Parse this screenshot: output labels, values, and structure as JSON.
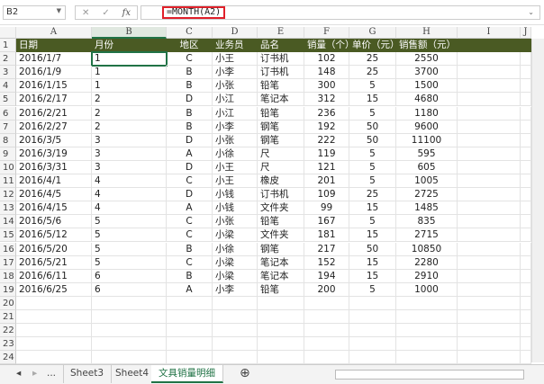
{
  "formula_bar": {
    "name_box": "B2",
    "cancel": "✕",
    "enter": "✓",
    "fx": "fx",
    "formula": "=MONTH(A2)"
  },
  "columns": [
    "A",
    "B",
    "C",
    "D",
    "E",
    "F",
    "G",
    "H",
    "I",
    "J"
  ],
  "header": [
    "日期",
    "月份",
    "地区",
    "业务员",
    "品名",
    "销量（个）",
    "单价（元）",
    "销售额（元）"
  ],
  "rows": [
    [
      "2016/1/7",
      "1",
      "C",
      "小王",
      "订书机",
      "102",
      "25",
      "2550"
    ],
    [
      "2016/1/9",
      "1",
      "B",
      "小李",
      "订书机",
      "148",
      "25",
      "3700"
    ],
    [
      "2016/1/15",
      "1",
      "B",
      "小张",
      "铅笔",
      "300",
      "5",
      "1500"
    ],
    [
      "2016/2/17",
      "2",
      "D",
      "小江",
      "笔记本",
      "312",
      "15",
      "4680"
    ],
    [
      "2016/2/21",
      "2",
      "B",
      "小江",
      "铅笔",
      "236",
      "5",
      "1180"
    ],
    [
      "2016/2/27",
      "2",
      "B",
      "小李",
      "钢笔",
      "192",
      "50",
      "9600"
    ],
    [
      "2016/3/5",
      "3",
      "D",
      "小张",
      "钢笔",
      "222",
      "50",
      "11100"
    ],
    [
      "2016/3/19",
      "3",
      "A",
      "小徐",
      "尺",
      "119",
      "5",
      "595"
    ],
    [
      "2016/3/31",
      "3",
      "D",
      "小王",
      "尺",
      "121",
      "5",
      "605"
    ],
    [
      "2016/4/1",
      "4",
      "C",
      "小王",
      "橡皮",
      "201",
      "5",
      "1005"
    ],
    [
      "2016/4/5",
      "4",
      "D",
      "小钱",
      "订书机",
      "109",
      "25",
      "2725"
    ],
    [
      "2016/4/15",
      "4",
      "A",
      "小钱",
      "文件夹",
      "99",
      "15",
      "1485"
    ],
    [
      "2016/5/6",
      "5",
      "C",
      "小张",
      "铅笔",
      "167",
      "5",
      "835"
    ],
    [
      "2016/5/12",
      "5",
      "C",
      "小梁",
      "文件夹",
      "181",
      "15",
      "2715"
    ],
    [
      "2016/5/20",
      "5",
      "B",
      "小徐",
      "钢笔",
      "217",
      "50",
      "10850"
    ],
    [
      "2016/5/21",
      "5",
      "C",
      "小梁",
      "笔记本",
      "152",
      "15",
      "2280"
    ],
    [
      "2016/6/11",
      "6",
      "B",
      "小梁",
      "笔记本",
      "194",
      "15",
      "2910"
    ],
    [
      "2016/6/25",
      "6",
      "A",
      "小李",
      "铅笔",
      "200",
      "5",
      "1000"
    ]
  ],
  "row_numbers_extra": [
    "20",
    "21",
    "22",
    "23",
    "24"
  ],
  "tabs": {
    "prev": "◂",
    "next": "▸",
    "more": "...",
    "sheets": [
      "Sheet3",
      "Sheet4",
      "文具销量明细"
    ],
    "active": 2,
    "add": "⊕"
  }
}
